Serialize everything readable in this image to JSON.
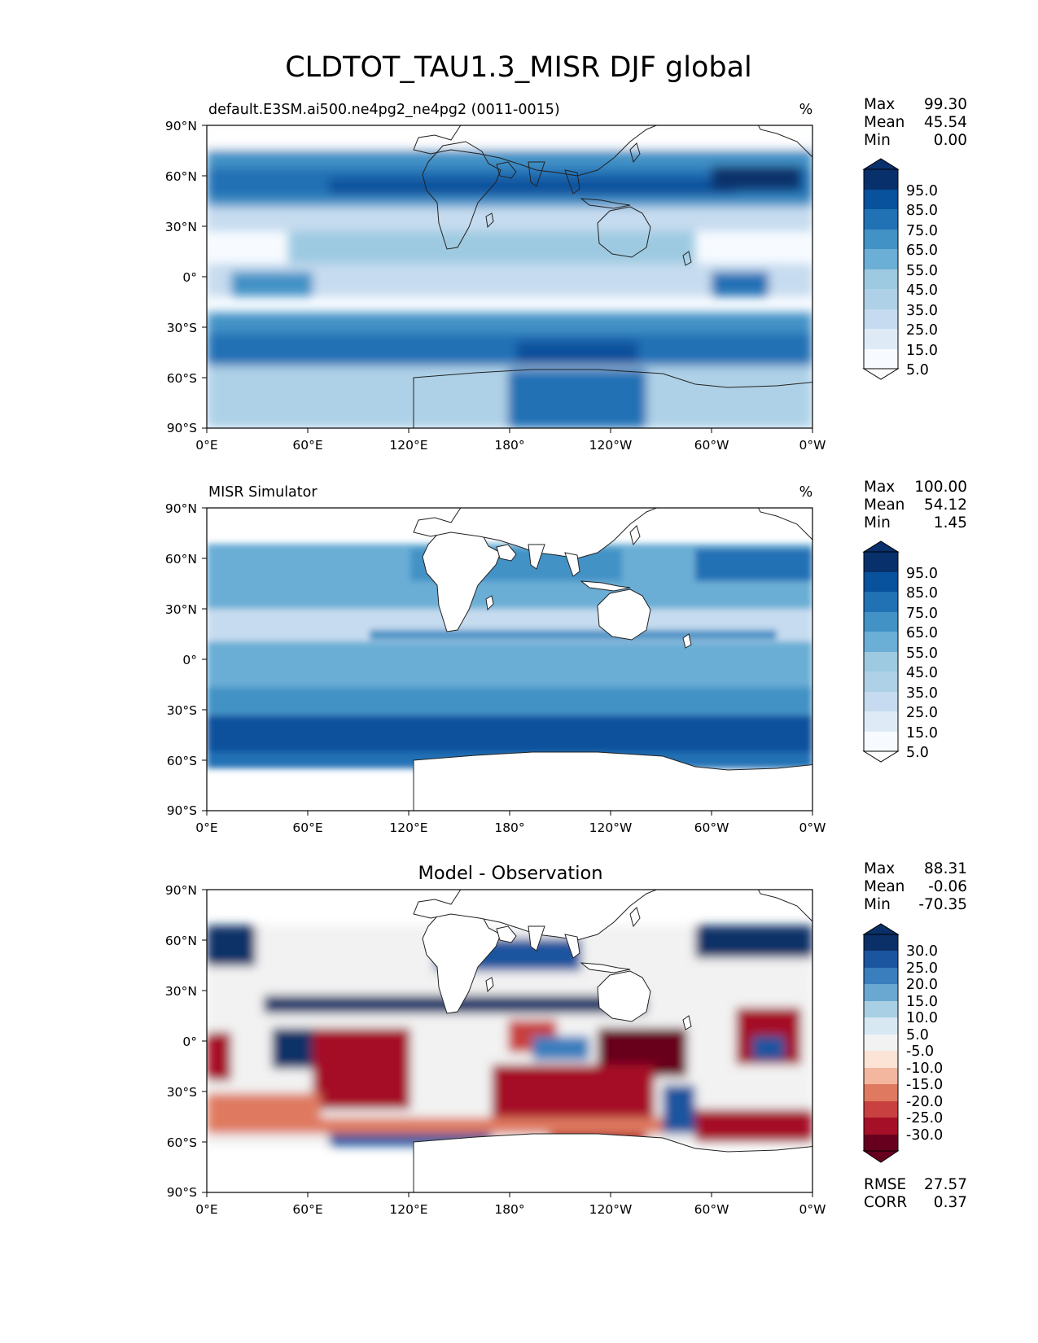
{
  "figure_title": "CLDTOT_TAU1.3_MISR DJF global",
  "colors": {
    "blues": [
      "#f7fbff",
      "#deebf7",
      "#c6dbef",
      "#aed1e7",
      "#9ecae1",
      "#6baed6",
      "#4292c6",
      "#2171b5",
      "#08519c",
      "#08306b"
    ],
    "diff": [
      "#67001f",
      "#a50f27",
      "#c94040",
      "#df7a60",
      "#f2b79e",
      "#fbe3d6",
      "#f2f2f2",
      "#d7e8f3",
      "#a8cfe4",
      "#6aa8d1",
      "#3a7ebd",
      "#1b559f",
      "#0a3067"
    ],
    "coast": "#222222"
  },
  "chart_data": [
    {
      "type": "heatmap",
      "title": "default.E3SM.ai500.ne4pg2_ne4pg2 (0011-0015)",
      "units": "%",
      "stats": [
        {
          "label": "Max",
          "value": "99.30"
        },
        {
          "label": "Mean",
          "value": "45.54"
        },
        {
          "label": "Min",
          "value": "0.00"
        }
      ],
      "colorbar_ticks": [
        "95.0",
        "85.0",
        "75.0",
        "65.0",
        "55.0",
        "45.0",
        "35.0",
        "25.0",
        "15.0",
        "5.0"
      ],
      "lat_ticks": [
        "90°N",
        "60°N",
        "30°N",
        "0°",
        "30°S",
        "60°S",
        "90°S"
      ],
      "lon_ticks": [
        "0°E",
        "60°E",
        "120°E",
        "180°",
        "120°W",
        "60°W",
        "0°W"
      ],
      "xlim": [
        0,
        360
      ],
      "ylim": [
        -90,
        90
      ]
    },
    {
      "type": "heatmap",
      "title": "MISR Simulator",
      "units": "%",
      "stats": [
        {
          "label": "Max",
          "value": "100.00"
        },
        {
          "label": "Mean",
          "value": "54.12"
        },
        {
          "label": "Min",
          "value": "1.45"
        }
      ],
      "colorbar_ticks": [
        "95.0",
        "85.0",
        "75.0",
        "65.0",
        "55.0",
        "45.0",
        "35.0",
        "25.0",
        "15.0",
        "5.0"
      ],
      "lat_ticks": [
        "90°N",
        "60°N",
        "30°N",
        "0°",
        "30°S",
        "60°S",
        "90°S"
      ],
      "lon_ticks": [
        "0°E",
        "60°E",
        "120°E",
        "180°",
        "120°W",
        "60°W",
        "0°W"
      ],
      "xlim": [
        0,
        360
      ],
      "ylim": [
        -90,
        90
      ]
    },
    {
      "type": "heatmap",
      "title": "Model - Observation",
      "units": "",
      "stats": [
        {
          "label": "Max",
          "value": "88.31"
        },
        {
          "label": "Mean",
          "value": "-0.06"
        },
        {
          "label": "Min",
          "value": "-70.35"
        }
      ],
      "colorbar_ticks": [
        "30.0",
        "25.0",
        "20.0",
        "15.0",
        "10.0",
        "5.0",
        "-5.0",
        "-10.0",
        "-15.0",
        "-20.0",
        "-25.0",
        "-30.0"
      ],
      "lat_ticks": [
        "90°N",
        "60°N",
        "30°N",
        "0°",
        "30°S",
        "60°S",
        "90°S"
      ],
      "lon_ticks": [
        "0°E",
        "60°E",
        "120°E",
        "180°",
        "120°W",
        "60°W",
        "0°W"
      ],
      "xlim": [
        0,
        360
      ],
      "ylim": [
        -90,
        90
      ],
      "metrics": [
        {
          "label": "RMSE",
          "value": "27.57"
        },
        {
          "label": "CORR",
          "value": "0.37"
        }
      ]
    }
  ]
}
